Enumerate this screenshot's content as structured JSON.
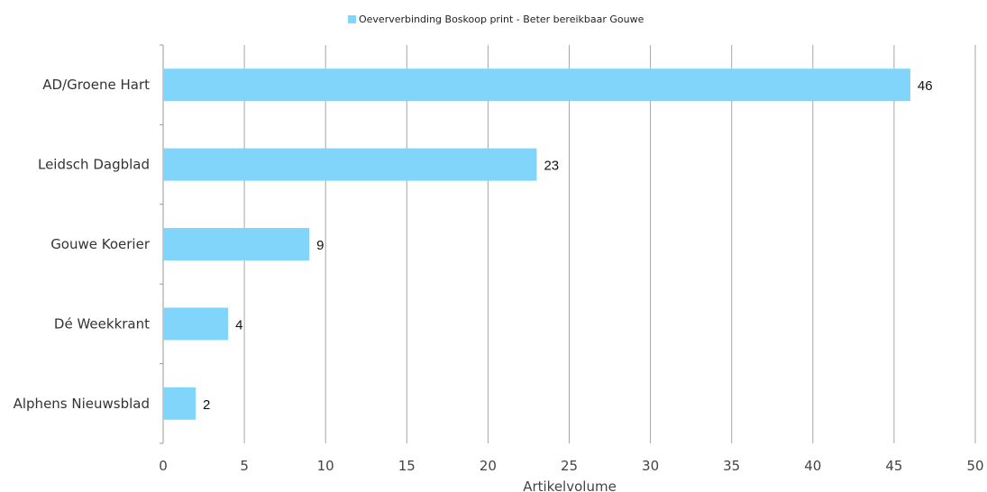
{
  "chart_data": {
    "type": "bar",
    "orientation": "horizontal",
    "categories": [
      "AD/Groene Hart",
      "Leidsch Dagblad",
      "Gouwe Koerier",
      "Dé Weekkrant",
      "Alphens Nieuwsblad"
    ],
    "series": [
      {
        "name": "Oeververbinding Boskoop print - Beter bereikbaar Gouwe",
        "values": [
          46,
          23,
          9,
          4,
          2
        ],
        "color": "#81d4fa"
      }
    ],
    "xlabel": "Artikelvolume",
    "ylabel": "",
    "xlim": [
      0,
      50
    ],
    "xticks": [
      0,
      5,
      10,
      15,
      20,
      25,
      30,
      35,
      40,
      45,
      50
    ],
    "grid": true,
    "legend": "top-center",
    "data_labels": true
  }
}
